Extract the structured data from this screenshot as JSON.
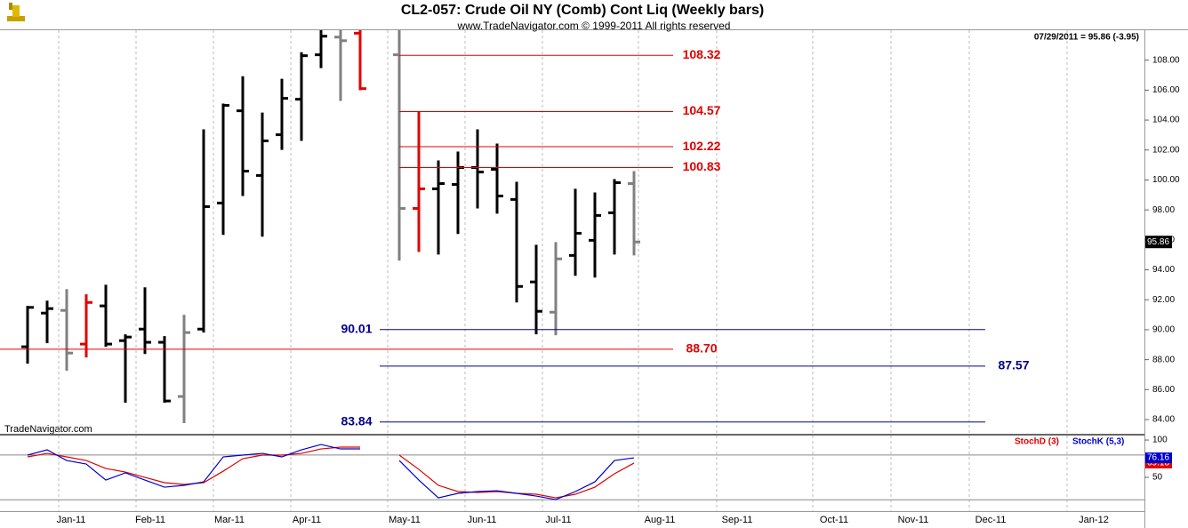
{
  "title": "CL2-057:  Crude Oil NY (Comb) Cont Liq  (Weekly bars)",
  "subtitle": "www.TradeNavigator.com © 1999-2011 All rights reserved",
  "status": "07/29/2011 = 95.86 (-3.95)",
  "watermark": "TradeNavigator.com",
  "chart_data": [
    {
      "type": "ohlc",
      "open": [
        88.86,
        91.11,
        91.29,
        89.04,
        91.59,
        89.27,
        90.04,
        89.16,
        85.54,
        90.04,
        98.46,
        104.62,
        100.3,
        103.02,
        105.39,
        108.36,
        109.54,
        109.8,
        null,
        108.36,
        98.1,
        99.41,
        99.7,
        100.83,
        100.71,
        98.7,
        93.19,
        91.17,
        94.96,
        95.97,
        97.81,
        99.76
      ],
      "high": [
        91.59,
        91.94,
        92.71,
        92.36,
        93.0,
        89.69,
        92.83,
        89.57,
        91.0,
        103.38,
        105.1,
        106.93,
        104.5,
        106.76,
        108.53,
        110.6,
        111.2,
        110.8,
        null,
        110.4,
        104.56,
        101.3,
        101.9,
        103.38,
        102.43,
        99.88,
        95.67,
        95.85,
        99.41,
        99.17,
        100.06,
        100.59
      ],
      "low": [
        87.73,
        89.1,
        87.26,
        88.15,
        88.86,
        85.13,
        88.38,
        85.13,
        83.76,
        89.81,
        96.33,
        98.93,
        96.21,
        102.01,
        102.61,
        107.47,
        105.27,
        105.99,
        null,
        94.61,
        95.2,
        95.02,
        96.39,
        98.1,
        97.75,
        91.82,
        89.69,
        89.63,
        93.6,
        93.48,
        95.02,
        94.96
      ],
      "close": [
        91.49,
        91.41,
        88.44,
        91.82,
        89.04,
        89.51,
        89.16,
        85.24,
        89.81,
        98.22,
        104.98,
        100.59,
        102.61,
        105.45,
        108.3,
        109.6,
        109.3,
        106.1,
        null,
        98.1,
        99.41,
        99.76,
        100.83,
        100.53,
        98.93,
        92.89,
        91.23,
        94.73,
        96.44,
        97.63,
        99.82,
        95.86
      ],
      "colors": [
        "#000000",
        "#000000",
        "#808080",
        "#e00000",
        "#000000",
        "#000000",
        "#000000",
        "#000000",
        "#808080",
        "#000000",
        "#000000",
        "#000000",
        "#000000",
        "#000000",
        "#000000",
        "#000000",
        "#808080",
        "#e00000",
        null,
        "#808080",
        "#e00000",
        "#000000",
        "#000000",
        "#000000",
        "#000000",
        "#000000",
        "#000000",
        "#808080",
        "#000000",
        "#000000",
        "#000000",
        "#808080"
      ],
      "last_value": 95.86,
      "ylim": [
        83.05,
        110.0
      ],
      "yticks": [
        {
          "value": 84,
          "label": "84.00"
        },
        {
          "value": 86,
          "label": "86.00"
        },
        {
          "value": 88,
          "label": "88.00"
        },
        {
          "value": 90,
          "label": "90.00"
        },
        {
          "value": 92,
          "label": "92.00"
        },
        {
          "value": 94,
          "label": "94.00"
        },
        {
          "value": 96,
          "label": "96.00"
        },
        {
          "value": 98,
          "label": "98.00"
        },
        {
          "value": 100,
          "label": "100.00"
        },
        {
          "value": 102,
          "label": "102.00"
        },
        {
          "value": 104,
          "label": "104.00"
        },
        {
          "value": 106,
          "label": "106.00"
        },
        {
          "value": 108,
          "label": "108.00"
        }
      ],
      "levels": [
        {
          "value": 108.32,
          "color": "#e00000"
        },
        {
          "value": 104.57,
          "color": "#e00000"
        },
        {
          "value": 102.22,
          "color": "#e00000"
        },
        {
          "value": 100.83,
          "color": "#e00000"
        },
        {
          "value": 88.7,
          "value_label": "88.70",
          "color": "#e00000"
        },
        {
          "value": 90.01,
          "color": "#00008b"
        },
        {
          "value": 87.57,
          "color": "#00008b"
        },
        {
          "value": 83.84,
          "color": "#00008b"
        }
      ],
      "xtick_labels": [
        "Jan-11",
        "Feb-11",
        "Mar-11",
        "Apr-11",
        "May-11",
        "Jun-11",
        "Jul-11",
        "Aug-11",
        "Sep-11",
        "Oct-11",
        "Nov-11",
        "Dec-11",
        "Jan-12"
      ]
    },
    {
      "type": "line",
      "series": [
        {
          "name": "StochD (3)",
          "color": "#e00000",
          "values": [
            77.4,
            82.1,
            77.4,
            72.6,
            61.9,
            57.1,
            50,
            42.9,
            40.5,
            42.9,
            58.3,
            75,
            79.8,
            79.8,
            82.1,
            88.1,
            90.5,
            90.5,
            null,
            79.8,
            60.7,
            39.3,
            31,
            29.8,
            31,
            28.6,
            27.4,
            22.6,
            27.4,
            36.9,
            54.8,
            69.18
          ]
        },
        {
          "name": "StochK (5,3)",
          "color": "#0000cc",
          "values": [
            79.8,
            86.9,
            72.6,
            67.9,
            46.4,
            56,
            46.4,
            36.9,
            39.3,
            44,
            77.4,
            79.8,
            82.1,
            77.4,
            86.9,
            94,
            88.1,
            88.1,
            null,
            72.6,
            46.4,
            22.6,
            28.6,
            31,
            32.1,
            28.6,
            25,
            20.2,
            31,
            44,
            72.6,
            76.16
          ]
        }
      ],
      "ylim": [
        4.8,
        106
      ],
      "yticks": [
        50,
        100
      ],
      "levels": [
        80,
        20
      ]
    }
  ]
}
